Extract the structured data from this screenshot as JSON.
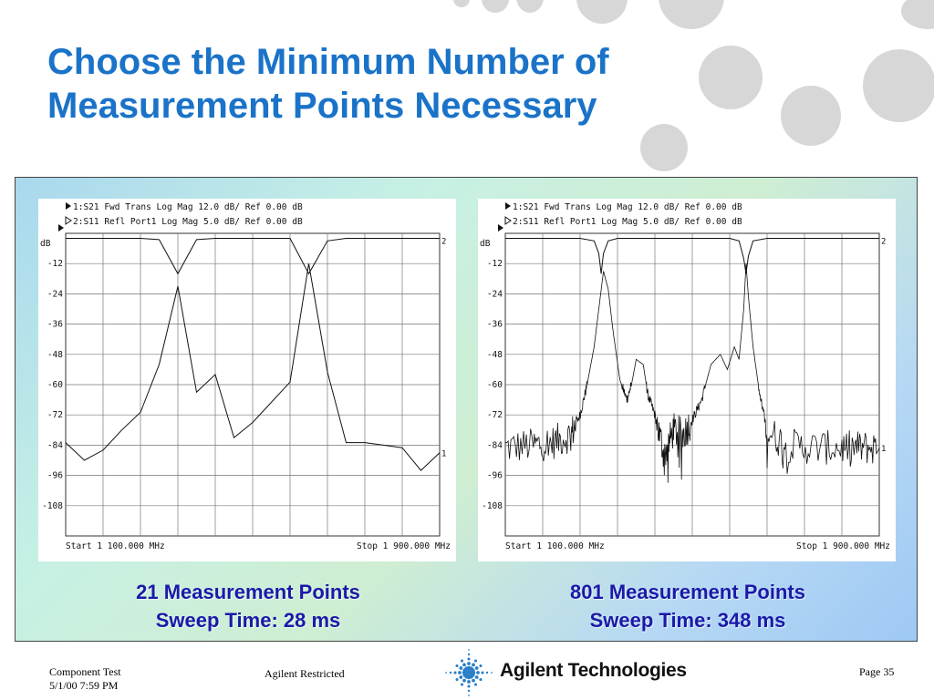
{
  "title": {
    "line1": "Choose the Minimum Number of",
    "line2": "Measurement Points Necessary"
  },
  "colors": {
    "title": "#1a73c8",
    "caption": "#1a1aa8",
    "decor_dots": "#d7d7d7"
  },
  "captions": [
    {
      "line1": "21 Measurement Points",
      "line2": "Sweep Time: 28 ms"
    },
    {
      "line1": "801 Measurement Points",
      "line2": "Sweep Time: 348 ms"
    }
  ],
  "chart_data": [
    {
      "type": "line",
      "header": {
        "trace1": "1:S21 Fwd Trans    Log Mag  12.0 dB/ Ref   0.00 dB",
        "trace2": "2:S11 Refl Port1   Log Mag   5.0 dB/ Ref   0.00 dB"
      },
      "ylabel": "dB",
      "yticks": [
        "-12",
        "-24",
        "-36",
        "-48",
        "-60",
        "-72",
        "-84",
        "-96",
        "-108"
      ],
      "ylim": [
        -120,
        0
      ],
      "xlim": [
        100,
        900
      ],
      "xunit": "MHz",
      "start_label": "Start 1 100.000 MHz",
      "stop_label": "Stop 1 900.000 MHz",
      "marker_labels": {
        "trace2": "2",
        "trace1": "1"
      },
      "grid": true,
      "series": [
        {
          "marker": "1",
          "x": [
            100,
            140,
            180,
            220,
            260,
            300,
            340,
            380,
            420,
            460,
            500,
            540,
            580,
            620,
            660,
            700,
            740,
            780,
            820,
            860,
            900
          ],
          "y": [
            -83,
            -90,
            -86,
            -78,
            -71,
            -52,
            -21,
            -63,
            -56,
            -81,
            -75,
            -67,
            -59,
            -12,
            -55,
            -83,
            -83,
            -84,
            -85,
            -94,
            -87
          ]
        },
        {
          "marker": "2",
          "x": [
            100,
            140,
            180,
            220,
            260,
            300,
            340,
            380,
            420,
            460,
            500,
            540,
            580,
            620,
            660,
            700,
            740,
            780,
            820,
            860,
            900
          ],
          "y": [
            -2,
            -2,
            -2,
            -2,
            -2,
            -2.5,
            -16,
            -2.5,
            -2,
            -2,
            -2,
            -2,
            -2,
            -16,
            -3,
            -2,
            -2,
            -2,
            -2,
            -2,
            -2
          ]
        }
      ]
    },
    {
      "type": "line",
      "header": {
        "trace1": "1:S21 Fwd Trans    Log Mag  12.0 dB/ Ref   0.00 dB",
        "trace2": "2:S11 Refl Port1   Log Mag   5.0 dB/ Ref   0.00 dB"
      },
      "ylabel": "dB",
      "yticks": [
        "-12",
        "-24",
        "-36",
        "-48",
        "-60",
        "-72",
        "-84",
        "-96",
        "-108"
      ],
      "ylim": [
        -120,
        0
      ],
      "xlim": [
        100,
        900
      ],
      "xunit": "MHz",
      "start_label": "Start 1 100.000 MHz",
      "stop_label": "Stop 1 900.000 MHz",
      "marker_labels": {
        "trace2": "2",
        "trace1": "1"
      },
      "grid": true,
      "series": [
        {
          "marker": "1",
          "noisy": true,
          "x": [
            100,
            160,
            200,
            240,
            260,
            275,
            290,
            300,
            310,
            320,
            330,
            345,
            360,
            370,
            380,
            395,
            405,
            420,
            440,
            460,
            480,
            500,
            520,
            540,
            560,
            575,
            590,
            600,
            610,
            615,
            620,
            630,
            645,
            660,
            700,
            760,
            820,
            860,
            900
          ],
          "y": [
            -85,
            -84,
            -83,
            -80,
            -72,
            -60,
            -45,
            -30,
            -15,
            -22,
            -38,
            -58,
            -66,
            -60,
            -50,
            -52,
            -64,
            -72,
            -88,
            -78,
            -80,
            -74,
            -66,
            -52,
            -48,
            -54,
            -45,
            -50,
            -30,
            -12,
            -25,
            -45,
            -65,
            -78,
            -84,
            -85,
            -85,
            -85,
            -85
          ]
        },
        {
          "marker": "2",
          "x": [
            100,
            200,
            260,
            290,
            300,
            305,
            310,
            320,
            340,
            400,
            500,
            580,
            600,
            610,
            615,
            620,
            630,
            660,
            760,
            900
          ],
          "y": [
            -2,
            -2,
            -2,
            -3,
            -8,
            -16,
            -8,
            -3,
            -2,
            -2,
            -2,
            -2,
            -3,
            -10,
            -16,
            -9,
            -3,
            -2,
            -2,
            -2
          ]
        }
      ]
    }
  ],
  "footer": {
    "line1": "Component Test",
    "line2": "5/1/00 7:59 PM",
    "center": "Agilent Restricted",
    "page": "Page 35",
    "logo_text": "Agilent Technologies"
  }
}
